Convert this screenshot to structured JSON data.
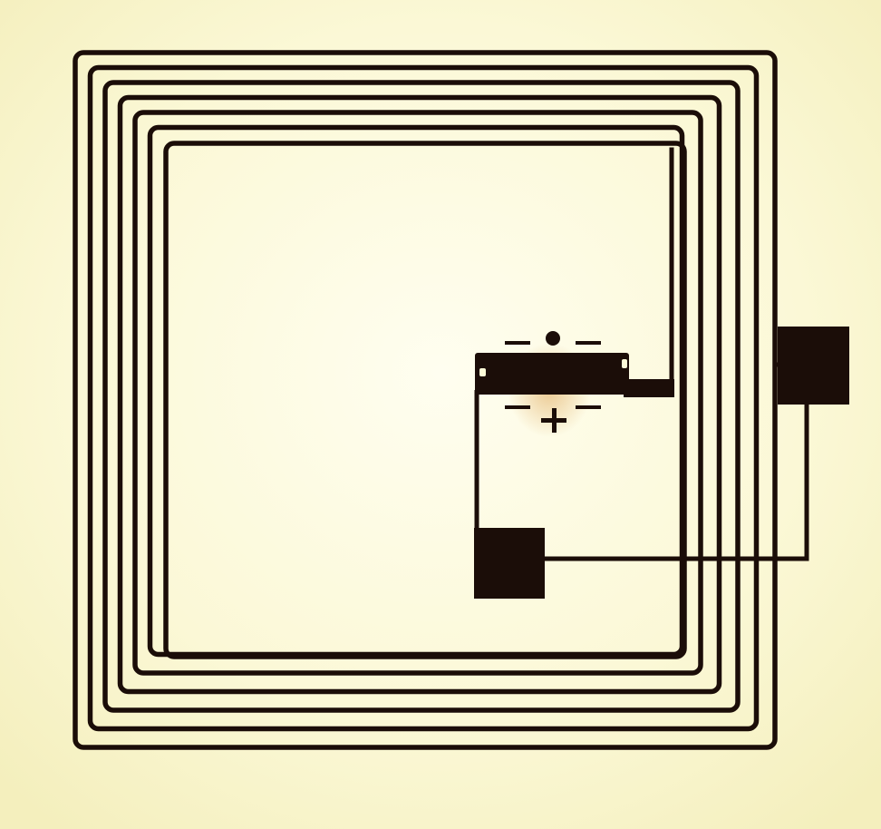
{
  "colors": {
    "paper": "#fdfbd8",
    "paper_mottle": "#f6f2c4",
    "trace": "#1b0d08",
    "chip_glow": "#e9c48a"
  },
  "coil": {
    "turns": 6
  },
  "chip": {
    "top_marks": "–  •  –",
    "bottom_marks": "–  +  –"
  }
}
